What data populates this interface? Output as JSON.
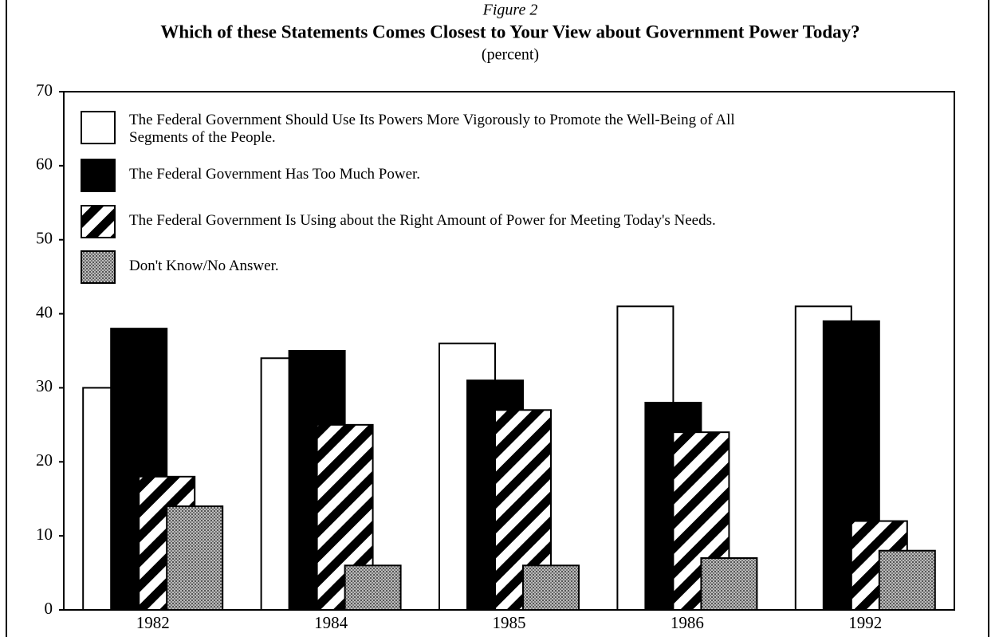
{
  "chart_data": {
    "type": "bar",
    "figure_label": "Figure 2",
    "title": "Which of these Statements Comes Closest to Your View about Government Power Today?",
    "subtitle": "(percent)",
    "categories": [
      "1982",
      "1984",
      "1985",
      "1986",
      "1992"
    ],
    "series": [
      {
        "name": "The Federal Government Should Use Its Powers More Vigorously to Promote the Well-Being of All Segments of the People.",
        "color": "#ffffff",
        "pattern": "solid",
        "values": [
          30,
          34,
          36,
          41,
          41
        ]
      },
      {
        "name": "The Federal Government Has Too Much Power.",
        "color": "#000000",
        "pattern": "solid",
        "values": [
          38,
          35,
          31,
          28,
          39
        ]
      },
      {
        "name": "The Federal Government Is Using about the Right Amount of Power for Meeting Today's Needs.",
        "color": "#000000",
        "pattern": "diagonal",
        "values": [
          18,
          25,
          27,
          24,
          12
        ]
      },
      {
        "name": "Don't Know/No Answer.",
        "color": "#8a8a8a",
        "pattern": "stipple",
        "values": [
          14,
          6,
          6,
          7,
          8
        ]
      }
    ],
    "ylim": [
      0,
      70
    ],
    "yticks": [
      0,
      10,
      20,
      30,
      40,
      50,
      60,
      70
    ],
    "grid": false,
    "legend": "top-left"
  }
}
